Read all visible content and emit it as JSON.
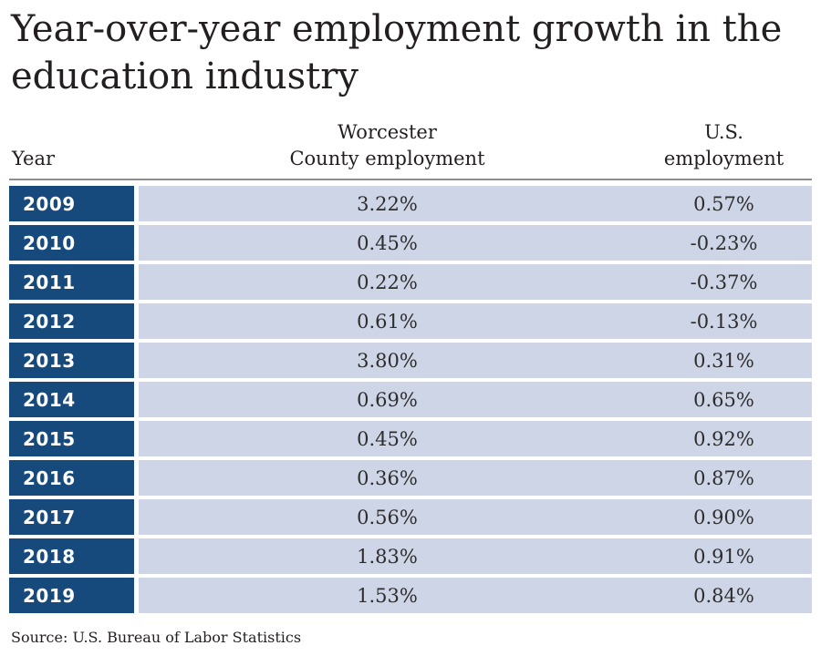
{
  "title": "Year-over-year employment growth in the education industry",
  "header": {
    "year": "Year",
    "worcester_line1": "Worcester",
    "worcester_line2": "County employment",
    "us_line1": "U.S.",
    "us_line2": "employment"
  },
  "source": "Source: U.S. Bureau of Labor Statistics",
  "colors": {
    "navy": "#16497c",
    "row_bg": "#cdd5e7",
    "rule": "#8e8e8e",
    "text": "#231f20",
    "value_text": "#2d2d2d"
  },
  "chart_data": {
    "type": "table",
    "title": "Year-over-year employment growth in the education industry",
    "columns": [
      "Year",
      "Worcester County employment",
      "U.S. employment"
    ],
    "rows": [
      [
        "2009",
        "3.22%",
        "0.57%"
      ],
      [
        "2010",
        "0.45%",
        "-0.23%"
      ],
      [
        "2011",
        "0.22%",
        "-0.37%"
      ],
      [
        "2012",
        "0.61%",
        "-0.13%"
      ],
      [
        "2013",
        "3.80%",
        "0.31%"
      ],
      [
        "2014",
        "0.69%",
        "0.65%"
      ],
      [
        "2015",
        "0.45%",
        "0.92%"
      ],
      [
        "2016",
        "0.36%",
        "0.87%"
      ],
      [
        "2017",
        "0.56%",
        "0.90%"
      ],
      [
        "2018",
        "1.83%",
        "0.91%"
      ],
      [
        "2019",
        "1.53%",
        "0.84%"
      ]
    ],
    "source": "Source: U.S. Bureau of Labor Statistics"
  }
}
